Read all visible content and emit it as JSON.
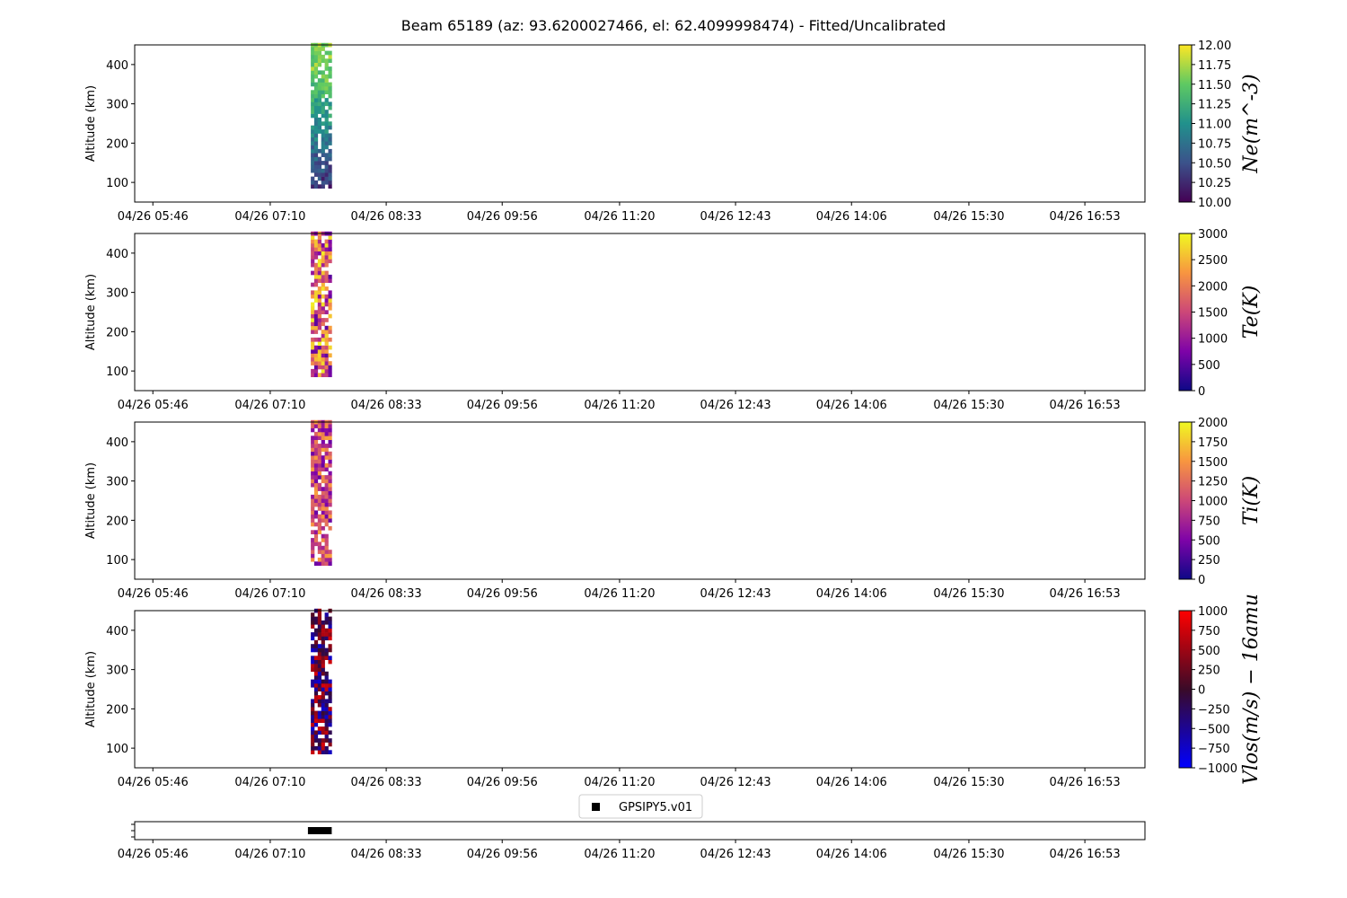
{
  "chart_data": {
    "title": "Beam 65189 (az: 93.6200027466, el: 62.4099998474) - Fitted/Uncalibrated",
    "x_tick_labels": [
      "04/26 05:46",
      "04/26 07:10",
      "04/26 08:33",
      "04/26 09:56",
      "04/26 11:20",
      "04/26 12:43",
      "04/26 14:06",
      "04/26 15:30",
      "04/26 16:53"
    ],
    "x_tick_minutes": [
      346,
      430,
      513,
      596,
      680,
      763,
      846,
      930,
      1013
    ],
    "x_range_minutes": [
      333,
      1056
    ],
    "data_time_range_minutes": [
      459,
      474
    ],
    "altitude_range_km": [
      50,
      450
    ],
    "data_altitude_range_km": [
      85,
      450
    ],
    "y_ticks": [
      100,
      200,
      300,
      400
    ],
    "panels": [
      {
        "type": "heatmap",
        "ylabel": "Altitude (km)",
        "colorbar_label": "Ne(m^-3)",
        "colormap": "viridis",
        "clim": [
          10,
          12
        ],
        "colorbar_ticks": [
          "10.00",
          "10.25",
          "10.50",
          "10.75",
          "11.00",
          "11.25",
          "11.50",
          "11.75",
          "12.00"
        ],
        "typical_range": [
          10.3,
          11.6
        ]
      },
      {
        "type": "heatmap",
        "ylabel": "Altitude (km)",
        "colorbar_label": "Te(K)",
        "colormap": "plasma",
        "clim": [
          0,
          3000
        ],
        "colorbar_ticks": [
          "0",
          "500",
          "1000",
          "1500",
          "2000",
          "2500",
          "3000"
        ],
        "typical_range": [
          500,
          3000
        ]
      },
      {
        "type": "heatmap",
        "ylabel": "Altitude (km)",
        "colorbar_label": "Ti(K)",
        "colormap": "plasma",
        "clim": [
          0,
          2000
        ],
        "colorbar_ticks": [
          "0",
          "250",
          "500",
          "750",
          "1000",
          "1250",
          "1500",
          "1750",
          "2000"
        ],
        "typical_range": [
          400,
          1600
        ]
      },
      {
        "type": "heatmap",
        "ylabel": "Altitude (km)",
        "colorbar_label": "Vlos(m/s) − 16amu",
        "colormap": "bwr-dark",
        "clim": [
          -1000,
          1000
        ],
        "colorbar_ticks": [
          "−1000",
          "−750",
          "−500",
          "−250",
          "0",
          "250",
          "500",
          "750",
          "1000"
        ],
        "typical_range": [
          -800,
          800
        ]
      }
    ],
    "legend": {
      "label": "GPSIPY5.v01",
      "placement": "above-bottom-strip"
    },
    "availability_strip": {
      "series": "GPSIPY5.v01",
      "interval_minutes": [
        457,
        474
      ]
    }
  }
}
